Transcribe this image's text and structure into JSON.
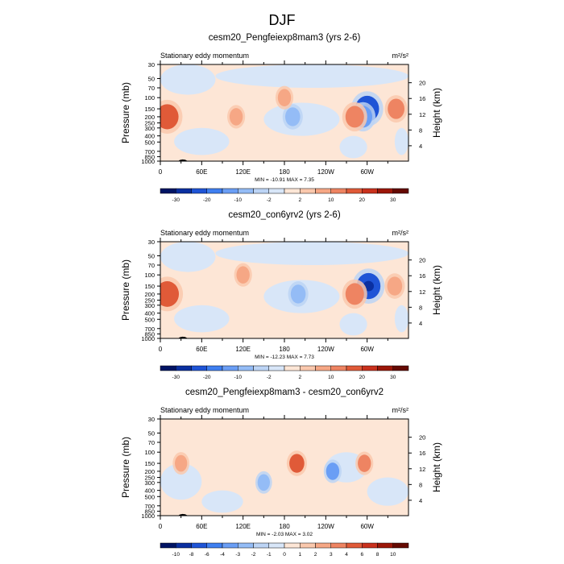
{
  "figure": {
    "title": "DJF"
  },
  "chart_data": [
    {
      "type": "heatmap",
      "title": "cesm20_Pengfeiexp8mam3 (yrs 2-6)",
      "left_label": "Stationary eddy momentum",
      "units": "m²/s²",
      "ylabel": "Pressure (mb)",
      "y2label": "Height (km)",
      "pressure_ticks": [
        30,
        50,
        70,
        100,
        150,
        200,
        250,
        300,
        400,
        500,
        700,
        850,
        1000
      ],
      "height_ticks": [
        20,
        16,
        12,
        8,
        4
      ],
      "xlim": [
        0,
        360
      ],
      "x_ticks": [
        {
          "lon": 0,
          "label": "0"
        },
        {
          "lon": 60,
          "label": "60E"
        },
        {
          "lon": 120,
          "label": "120E"
        },
        {
          "lon": 180,
          "label": "180"
        },
        {
          "lon": 240,
          "label": "120W"
        },
        {
          "lon": 300,
          "label": "60W"
        }
      ],
      "stats": "MIN = -10.91  MAX =  7.35",
      "colorbar_labels": [
        "-30",
        "-20",
        "-10",
        "-2",
        "2",
        "10",
        "20",
        "30"
      ],
      "colorbar_colors": [
        "#001464",
        "#0a2fa0",
        "#1f54d6",
        "#3f7ff0",
        "#6a9ef5",
        "#94bcf6",
        "#bcd4f5",
        "#d8e6f8",
        "#fde6d6",
        "#fac8ad",
        "#f6a785",
        "#ee8462",
        "#e05a38",
        "#c9311d",
        "#9c1709",
        "#650a02"
      ],
      "features": [
        {
          "lon": 300,
          "p": 150,
          "value": -10.9,
          "label": "blue core (min)"
        },
        {
          "lon": 294,
          "p": 200,
          "value": -5,
          "label": "blue lobe"
        },
        {
          "lon": 192,
          "p": 200,
          "value": -3,
          "label": "blue patch"
        },
        {
          "lon": 282,
          "p": 200,
          "value": 5,
          "label": "red lobe"
        },
        {
          "lon": 10,
          "p": 200,
          "value": 7.3,
          "label": "red lobe (max)"
        },
        {
          "lon": 342,
          "p": 150,
          "value": 4,
          "label": "red lobe"
        },
        {
          "lon": 110,
          "p": 200,
          "value": 2,
          "label": "weak red"
        },
        {
          "lon": 180,
          "p": 100,
          "value": 2,
          "label": "weak red"
        }
      ]
    },
    {
      "type": "heatmap",
      "title": "cesm20_con6yrv2 (yrs 2-6)",
      "left_label": "Stationary eddy momentum",
      "units": "m²/s²",
      "ylabel": "Pressure (mb)",
      "y2label": "Height (km)",
      "pressure_ticks": [
        30,
        50,
        70,
        100,
        150,
        200,
        250,
        300,
        400,
        500,
        700,
        850,
        1000
      ],
      "height_ticks": [
        20,
        16,
        12,
        8,
        4
      ],
      "xlim": [
        0,
        360
      ],
      "x_ticks": [
        {
          "lon": 0,
          "label": "0"
        },
        {
          "lon": 60,
          "label": "60E"
        },
        {
          "lon": 120,
          "label": "120E"
        },
        {
          "lon": 180,
          "label": "180"
        },
        {
          "lon": 240,
          "label": "120W"
        },
        {
          "lon": 300,
          "label": "60W"
        }
      ],
      "stats": "MIN = -12.23  MAX =  7.73",
      "colorbar_labels": [
        "-30",
        "-20",
        "-10",
        "-2",
        "2",
        "10",
        "20",
        "30"
      ],
      "colorbar_colors": [
        "#001464",
        "#0a2fa0",
        "#1f54d6",
        "#3f7ff0",
        "#6a9ef5",
        "#94bcf6",
        "#bcd4f5",
        "#d8e6f8",
        "#fde6d6",
        "#fac8ad",
        "#f6a785",
        "#ee8462",
        "#e05a38",
        "#c9311d",
        "#9c1709",
        "#650a02"
      ],
      "features": [
        {
          "lon": 302,
          "p": 150,
          "value": -12.2,
          "label": "blue core (min)"
        },
        {
          "lon": 200,
          "p": 200,
          "value": -3,
          "label": "blue patch"
        },
        {
          "lon": 282,
          "p": 200,
          "value": 5,
          "label": "red lobe"
        },
        {
          "lon": 10,
          "p": 200,
          "value": 7.7,
          "label": "red lobe (max)"
        },
        {
          "lon": 340,
          "p": 150,
          "value": 3,
          "label": "red lobe"
        },
        {
          "lon": 120,
          "p": 100,
          "value": 2,
          "label": "weak red"
        }
      ]
    },
    {
      "type": "heatmap",
      "title": "cesm20_Pengfeiexp8mam3 - cesm20_con6yrv2",
      "left_label": "Stationary eddy momentum",
      "units": "m²/s²",
      "ylabel": "Pressure (mb)",
      "y2label": "Height (km)",
      "pressure_ticks": [
        30,
        50,
        70,
        100,
        150,
        200,
        250,
        300,
        400,
        500,
        700,
        850,
        1000
      ],
      "height_ticks": [
        20,
        16,
        12,
        8,
        4
      ],
      "xlim": [
        0,
        360
      ],
      "x_ticks": [
        {
          "lon": 0,
          "label": "0"
        },
        {
          "lon": 60,
          "label": "60E"
        },
        {
          "lon": 120,
          "label": "120E"
        },
        {
          "lon": 180,
          "label": "180"
        },
        {
          "lon": 240,
          "label": "120W"
        },
        {
          "lon": 300,
          "label": "60W"
        }
      ],
      "stats": "MIN =  -2.03  MAX =  3.02",
      "colorbar_labels": [
        "-10",
        "-8",
        "-6",
        "-4",
        "-3",
        "-2",
        "-1",
        "0",
        "1",
        "2",
        "3",
        "4",
        "6",
        "8",
        "10"
      ],
      "colorbar_colors": [
        "#001464",
        "#0a2fa0",
        "#1f54d6",
        "#3f7ff0",
        "#6a9ef5",
        "#94bcf6",
        "#bcd4f5",
        "#d8e6f8",
        "#fde6d6",
        "#fac8ad",
        "#f6a785",
        "#ee8462",
        "#e05a38",
        "#c9311d",
        "#9c1709",
        "#650a02"
      ],
      "features": [
        {
          "lon": 198,
          "p": 150,
          "value": 3.0,
          "label": "red patch (max)"
        },
        {
          "lon": 296,
          "p": 150,
          "value": 2,
          "label": "red patch"
        },
        {
          "lon": 30,
          "p": 150,
          "value": 1.5,
          "label": "weak red"
        },
        {
          "lon": 250,
          "p": 200,
          "value": -2,
          "label": "blue patch"
        },
        {
          "lon": 150,
          "p": 300,
          "value": -1.5,
          "label": "blue patch"
        }
      ]
    }
  ]
}
